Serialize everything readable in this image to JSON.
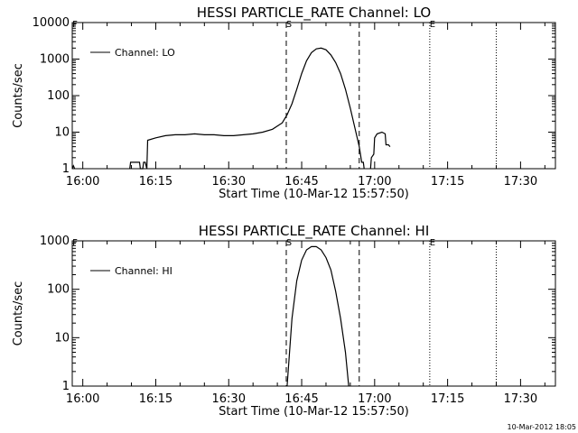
{
  "chart_data": [
    {
      "type": "line",
      "title": "HESSI PARTICLE_RATE Channel: LO",
      "xlabel": "Start Time (10-Mar-12 15:57:50)",
      "ylabel": "Counts/sec",
      "y_scale": "log",
      "ylim": [
        1,
        10000
      ],
      "xlim": [
        "15:57:50",
        "17:37:10"
      ],
      "x_tick_labels": [
        "16:00",
        "16:15",
        "16:30",
        "16:45",
        "17:00",
        "17:15",
        "17:30"
      ],
      "y_tick_labels": [
        "1",
        "10",
        "100",
        "1000",
        "10000"
      ],
      "legend": {
        "position": "top-left",
        "entries": [
          "Channel: LO"
        ]
      },
      "markers": [
        {
          "label": "F",
          "time": "15:57:50",
          "style": "dotted"
        },
        {
          "label": "S",
          "time": "16:41:50",
          "style": "dashed"
        },
        {
          "label": "",
          "time": "16:56:50",
          "style": "dashed"
        },
        {
          "label": "E",
          "time": "17:11:20",
          "style": "dotted"
        },
        {
          "label": "",
          "time": "17:25:00",
          "style": "dotted"
        }
      ],
      "series": [
        {
          "name": "Channel: LO",
          "segments": [
            [
              {
                "x": "15:57:50",
                "y": 1
              },
              {
                "x": "15:58:05",
                "y": 1.2
              },
              {
                "x": "15:58:20",
                "y": 1
              }
            ],
            [
              {
                "x": "16:09:40",
                "y": 1
              },
              {
                "x": "16:09:50",
                "y": 1.5
              },
              {
                "x": "16:11:40",
                "y": 1.5
              },
              {
                "x": "16:11:50",
                "y": 1
              },
              {
                "x": "16:12:20",
                "y": 1
              },
              {
                "x": "16:12:30",
                "y": 1.5
              },
              {
                "x": "16:12:50",
                "y": 1.5
              },
              {
                "x": "16:13:10",
                "y": 1
              },
              {
                "x": "16:13:20",
                "y": 6
              },
              {
                "x": "16:15:00",
                "y": 7
              },
              {
                "x": "16:17:00",
                "y": 8
              },
              {
                "x": "16:19:00",
                "y": 8.5
              },
              {
                "x": "16:21:00",
                "y": 8.5
              },
              {
                "x": "16:23:00",
                "y": 9
              },
              {
                "x": "16:25:00",
                "y": 8.5
              },
              {
                "x": "16:27:00",
                "y": 8.5
              },
              {
                "x": "16:29:00",
                "y": 8
              },
              {
                "x": "16:31:00",
                "y": 8
              },
              {
                "x": "16:33:00",
                "y": 8.5
              },
              {
                "x": "16:35:00",
                "y": 9
              },
              {
                "x": "16:37:00",
                "y": 10
              },
              {
                "x": "16:39:00",
                "y": 12
              },
              {
                "x": "16:41:00",
                "y": 18
              },
              {
                "x": "16:42:00",
                "y": 30
              },
              {
                "x": "16:43:00",
                "y": 60
              },
              {
                "x": "16:44:00",
                "y": 150
              },
              {
                "x": "16:45:00",
                "y": 400
              },
              {
                "x": "16:46:00",
                "y": 900
              },
              {
                "x": "16:47:00",
                "y": 1500
              },
              {
                "x": "16:48:00",
                "y": 1900
              },
              {
                "x": "16:49:00",
                "y": 2000
              },
              {
                "x": "16:50:00",
                "y": 1800
              },
              {
                "x": "16:51:00",
                "y": 1300
              },
              {
                "x": "16:52:00",
                "y": 800
              },
              {
                "x": "16:53:00",
                "y": 400
              },
              {
                "x": "16:54:00",
                "y": 150
              },
              {
                "x": "16:55:00",
                "y": 45
              },
              {
                "x": "16:56:00",
                "y": 12
              },
              {
                "x": "16:56:50",
                "y": 4
              },
              {
                "x": "16:57:20",
                "y": 1.5
              },
              {
                "x": "16:57:40",
                "y": 1.5
              },
              {
                "x": "16:57:50",
                "y": 1
              }
            ],
            [
              {
                "x": "16:59:10",
                "y": 1
              },
              {
                "x": "16:59:20",
                "y": 2
              },
              {
                "x": "16:59:50",
                "y": 2.5
              },
              {
                "x": "17:00:00",
                "y": 7
              },
              {
                "x": "17:00:30",
                "y": 9
              },
              {
                "x": "17:01:30",
                "y": 10
              },
              {
                "x": "17:02:10",
                "y": 9
              },
              {
                "x": "17:02:20",
                "y": 4.5
              },
              {
                "x": "17:02:50",
                "y": 4.5
              },
              {
                "x": "17:03:10",
                "y": 4
              }
            ]
          ]
        }
      ]
    },
    {
      "type": "line",
      "title": "HESSI PARTICLE_RATE Channel: HI",
      "xlabel": "Start Time (10-Mar-12 15:57:50)",
      "ylabel": "Counts/sec",
      "y_scale": "log",
      "ylim": [
        1,
        1000
      ],
      "xlim": [
        "15:57:50",
        "17:37:10"
      ],
      "x_tick_labels": [
        "16:00",
        "16:15",
        "16:30",
        "16:45",
        "17:00",
        "17:15",
        "17:30"
      ],
      "y_tick_labels": [
        "1",
        "10",
        "100",
        "1000"
      ],
      "legend": {
        "position": "top-left",
        "entries": [
          "Channel: HI"
        ]
      },
      "markers": [
        {
          "label": "F",
          "time": "15:57:50",
          "style": "dotted"
        },
        {
          "label": "S",
          "time": "16:41:50",
          "style": "dashed"
        },
        {
          "label": "",
          "time": "16:56:50",
          "style": "dashed"
        },
        {
          "label": "E",
          "time": "17:11:20",
          "style": "dotted"
        },
        {
          "label": "",
          "time": "17:25:00",
          "style": "dotted"
        }
      ],
      "series": [
        {
          "name": "Channel: HI",
          "segments": [
            [
              {
                "x": "16:42:00",
                "y": 1
              },
              {
                "x": "16:42:30",
                "y": 5
              },
              {
                "x": "16:43:00",
                "y": 25
              },
              {
                "x": "16:44:00",
                "y": 150
              },
              {
                "x": "16:45:00",
                "y": 400
              },
              {
                "x": "16:46:00",
                "y": 650
              },
              {
                "x": "16:47:00",
                "y": 760
              },
              {
                "x": "16:48:00",
                "y": 760
              },
              {
                "x": "16:49:00",
                "y": 650
              },
              {
                "x": "16:50:00",
                "y": 450
              },
              {
                "x": "16:51:00",
                "y": 250
              },
              {
                "x": "16:52:00",
                "y": 90
              },
              {
                "x": "16:53:00",
                "y": 25
              },
              {
                "x": "16:54:00",
                "y": 5
              },
              {
                "x": "16:54:40",
                "y": 1
              }
            ]
          ]
        }
      ]
    }
  ],
  "footer": {
    "timestamp": "10-Mar-2012 18:05"
  }
}
